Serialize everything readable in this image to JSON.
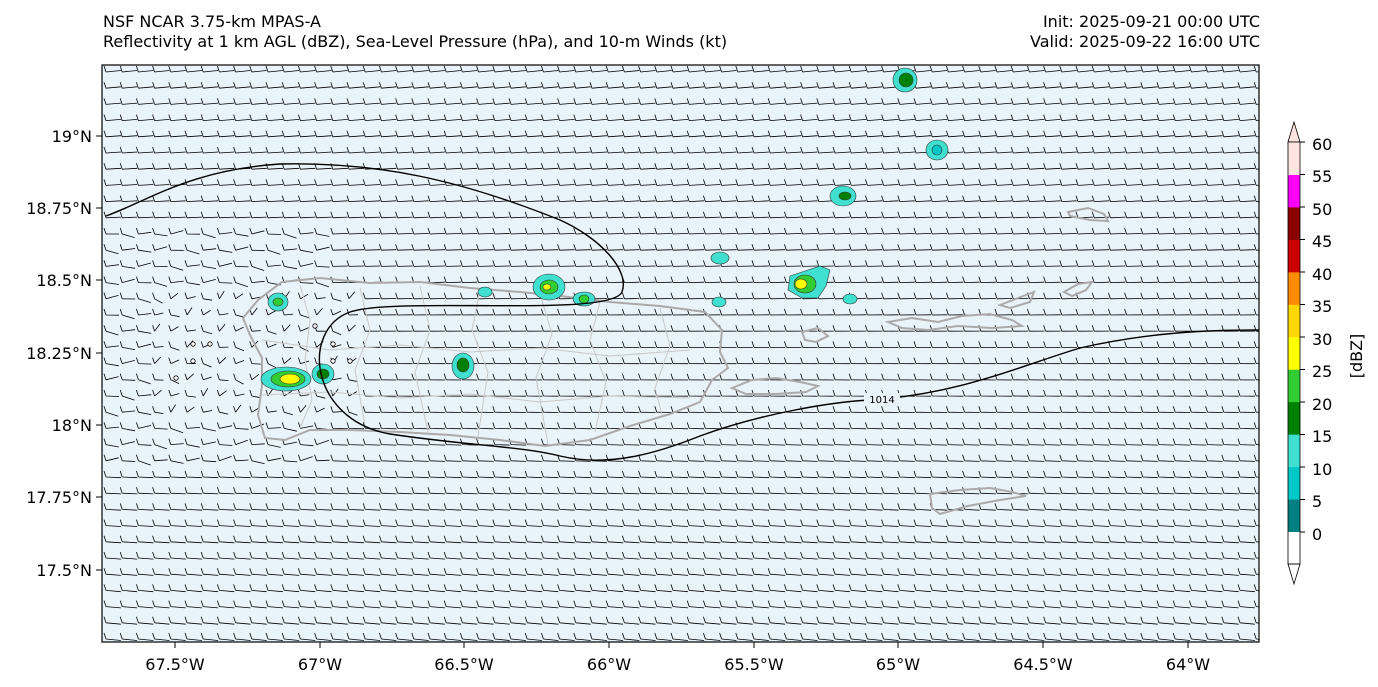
{
  "header": {
    "model": "NSF NCAR 3.75-km MPAS-A",
    "fields": "Reflectivity at 1 km AGL (dBZ), Sea-Level Pressure (hPa), and 10-m Winds (kt)",
    "init": "Init: 2025-09-21 00:00 UTC",
    "valid": "Valid: 2025-09-22 16:00 UTC"
  },
  "axes": {
    "lon_ticks": [
      "67.5°W",
      "67°W",
      "66.5°W",
      "66°W",
      "65.5°W",
      "65°W",
      "64.5°W",
      "64°W"
    ],
    "lat_ticks": [
      "19°N",
      "18.75°N",
      "18.5°N",
      "18.25°N",
      "18°N",
      "17.75°N",
      "17.5°N"
    ]
  },
  "isobar": {
    "label": "1014"
  },
  "colorbar": {
    "label": "[dBZ]",
    "ticks": [
      "0",
      "5",
      "10",
      "15",
      "20",
      "25",
      "30",
      "35",
      "40",
      "45",
      "50",
      "55",
      "60"
    ],
    "colors": [
      "#008080",
      "#00c8c8",
      "#40e0d0",
      "#008000",
      "#32cd32",
      "#ffff00",
      "#ffd700",
      "#ff8c00",
      "#cc0000",
      "#8b0000",
      "#ff00ff",
      "#ffe4e1"
    ]
  },
  "map_colors": {
    "background": "#e8f3fa",
    "coastline": "#aaaaaa",
    "isobar": "#000000",
    "barb": "#000000"
  }
}
